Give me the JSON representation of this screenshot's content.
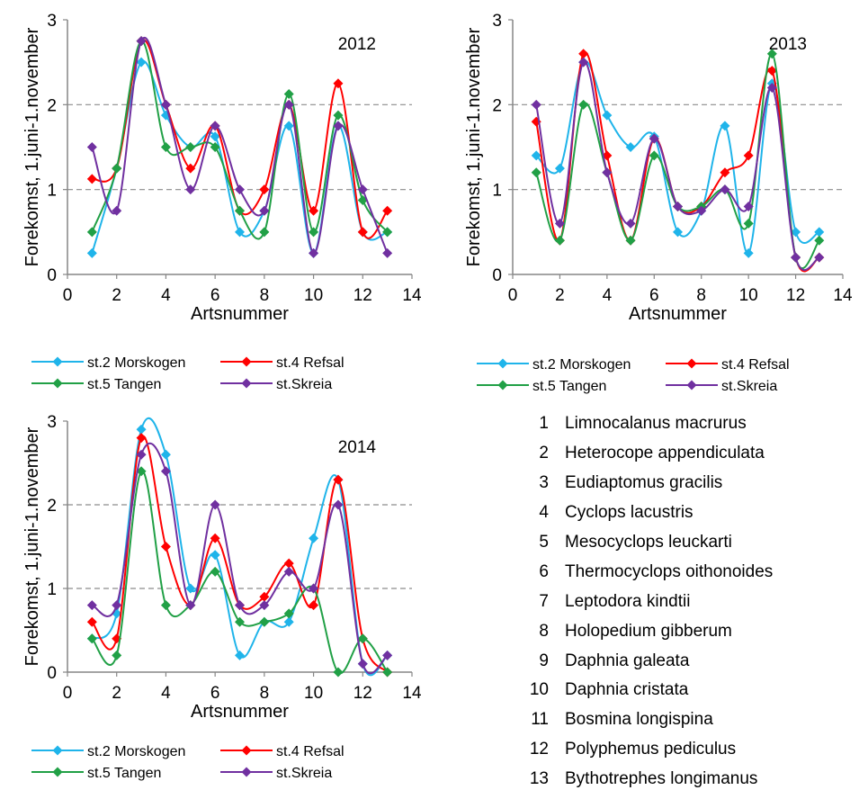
{
  "chart_data": [
    {
      "type": "line",
      "title": "2012",
      "xlabel": "Artsnummer",
      "ylabel": "Forekomst, 1.juni-1.november",
      "xlim": [
        0,
        14
      ],
      "ylim": [
        0,
        3
      ],
      "xticks": [
        0,
        2,
        4,
        6,
        8,
        10,
        12,
        14
      ],
      "yticks": [
        0,
        1,
        2,
        3
      ],
      "gridlines_y": [
        1,
        2
      ],
      "legend_position": "bottom",
      "x": [
        1,
        2,
        3,
        4,
        5,
        6,
        7,
        8,
        9,
        10,
        11,
        12,
        13
      ],
      "series": [
        {
          "name": "st.2 Morskogen",
          "color": "#1fb4ea",
          "values": [
            0.25,
            1.25,
            2.5,
            1.875,
            1.5,
            1.625,
            0.5,
            0.75,
            1.75,
            0.25,
            1.75,
            0.5,
            0.5
          ]
        },
        {
          "name": "st.4 Refsal",
          "color": "#ff0000",
          "values": [
            1.125,
            1.25,
            2.75,
            2.0,
            1.25,
            1.75,
            0.75,
            1.0,
            2.0,
            0.75,
            2.25,
            0.5,
            0.75
          ]
        },
        {
          "name": "st.5 Tangen",
          "color": "#21a046",
          "values": [
            0.5,
            1.25,
            2.75,
            1.5,
            1.5,
            1.5,
            0.75,
            0.5,
            2.125,
            0.5,
            1.875,
            0.875,
            0.5
          ]
        },
        {
          "name": "st.Skreia",
          "color": "#7030a0",
          "values": [
            1.5,
            0.75,
            2.75,
            2.0,
            1.0,
            1.75,
            1.0,
            0.75,
            2.0,
            0.25,
            1.75,
            1.0,
            0.25
          ]
        }
      ]
    },
    {
      "type": "line",
      "title": "2013",
      "xlabel": "Artsnummer",
      "ylabel": "Forekomst, 1.juni-1.november",
      "xlim": [
        0,
        14
      ],
      "ylim": [
        0,
        3
      ],
      "xticks": [
        0,
        2,
        4,
        6,
        8,
        10,
        12,
        14
      ],
      "yticks": [
        0,
        1,
        2,
        3
      ],
      "gridlines_y": [
        1,
        2
      ],
      "legend_position": "bottom",
      "x": [
        1,
        2,
        3,
        4,
        5,
        6,
        7,
        8,
        9,
        10,
        11,
        12,
        13
      ],
      "series": [
        {
          "name": "st.2 Morskogen",
          "color": "#1fb4ea",
          "values": [
            1.4,
            1.25,
            2.5,
            1.875,
            1.5,
            1.625,
            0.5,
            0.75,
            1.75,
            0.25,
            2.25,
            0.5,
            0.5
          ]
        },
        {
          "name": "st.4 Refsal",
          "color": "#ff0000",
          "values": [
            1.8,
            0.4,
            2.6,
            1.4,
            0.4,
            1.6,
            0.8,
            0.8,
            1.2,
            1.4,
            2.4,
            0.2,
            0.2
          ]
        },
        {
          "name": "st.5 Tangen",
          "color": "#21a046",
          "values": [
            1.2,
            0.4,
            2.0,
            1.2,
            0.4,
            1.4,
            0.8,
            0.8,
            1.0,
            0.6,
            2.6,
            0.2,
            0.4
          ]
        },
        {
          "name": "st.Skreia",
          "color": "#7030a0",
          "values": [
            2.0,
            0.6,
            2.5,
            1.2,
            0.6,
            1.6,
            0.8,
            0.75,
            1.0,
            0.8,
            2.2,
            0.2,
            0.2
          ]
        }
      ]
    },
    {
      "type": "line",
      "title": "2014",
      "xlabel": "Artsnummer",
      "ylabel": "Forekomst, 1.juni-1.november",
      "xlim": [
        0,
        14
      ],
      "ylim": [
        0,
        3
      ],
      "xticks": [
        0,
        2,
        4,
        6,
        8,
        10,
        12,
        14
      ],
      "yticks": [
        0,
        1,
        2,
        3
      ],
      "gridlines_y": [
        1,
        2
      ],
      "legend_position": "bottom",
      "x": [
        1,
        2,
        3,
        4,
        5,
        6,
        7,
        8,
        9,
        10,
        11,
        12,
        13
      ],
      "series": [
        {
          "name": "st.2 Morskogen",
          "color": "#1fb4ea",
          "values": [
            0.4,
            0.7,
            2.9,
            2.6,
            1.0,
            1.4,
            0.2,
            0.6,
            0.6,
            1.6,
            2.3,
            0.1,
            0.2
          ]
        },
        {
          "name": "st.4 Refsal",
          "color": "#ff0000",
          "values": [
            0.6,
            0.4,
            2.8,
            1.5,
            0.8,
            1.6,
            0.8,
            0.9,
            1.3,
            0.8,
            2.3,
            0.4,
            0.0
          ]
        },
        {
          "name": "st.5 Tangen",
          "color": "#21a046",
          "values": [
            0.4,
            0.2,
            2.4,
            0.8,
            0.8,
            1.2,
            0.6,
            0.6,
            0.7,
            1.0,
            0.0,
            0.4,
            0.0
          ]
        },
        {
          "name": "st.Skreia",
          "color": "#7030a0",
          "values": [
            0.8,
            0.8,
            2.6,
            2.4,
            0.8,
            2.0,
            0.8,
            0.8,
            1.2,
            1.0,
            2.0,
            0.1,
            0.2
          ]
        }
      ]
    }
  ],
  "species_list": [
    {
      "num": "1",
      "name": "Limnocalanus macrurus"
    },
    {
      "num": "2",
      "name": "Heterocope appendiculata"
    },
    {
      "num": "3",
      "name": "Eudiaptomus gracilis"
    },
    {
      "num": "4",
      "name": "Cyclops lacustris"
    },
    {
      "num": "5",
      "name": "Mesocyclops leuckarti"
    },
    {
      "num": "6",
      "name": "Thermocyclops oithonoides"
    },
    {
      "num": "7",
      "name": "Leptodora kindtii"
    },
    {
      "num": "8",
      "name": "Holopedium gibberum"
    },
    {
      "num": "9",
      "name": "Daphnia galeata"
    },
    {
      "num": "10",
      "name": "Daphnia cristata"
    },
    {
      "num": "11",
      "name": "Bosmina longispina"
    },
    {
      "num": "12",
      "name": "Polyphemus pediculus"
    },
    {
      "num": "13",
      "name": "Bythotrephes longimanus"
    }
  ]
}
